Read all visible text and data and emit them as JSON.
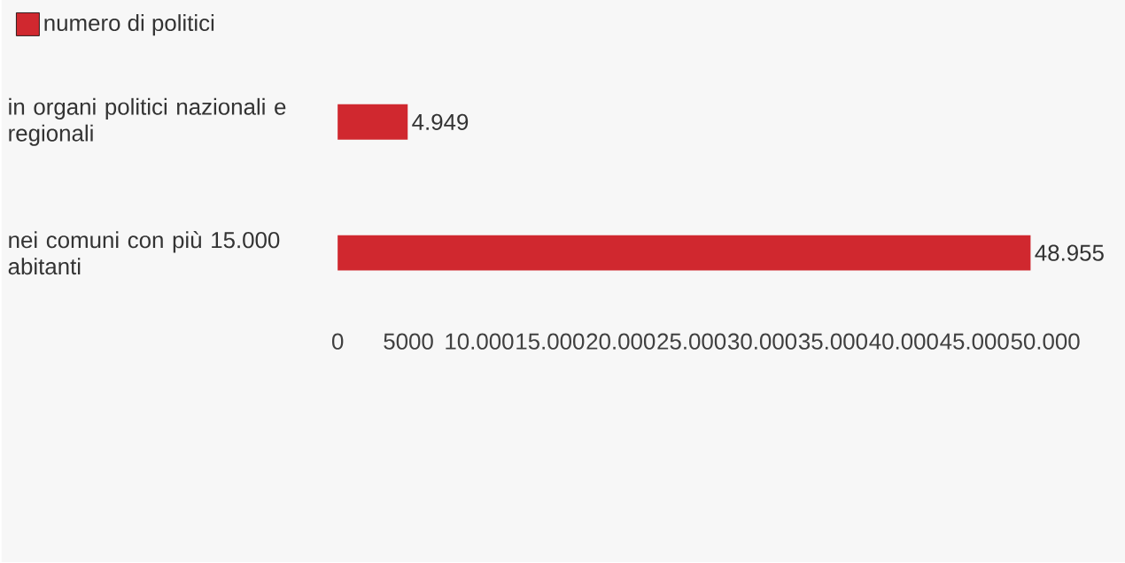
{
  "chart_data": {
    "type": "bar",
    "orientation": "horizontal",
    "categories": [
      "in organi politici nazionali e regionali",
      "nei comuni con più 15.000 abitanti"
    ],
    "series": [
      {
        "name": "numero di politici",
        "color": "#d0282f",
        "values": [
          4949,
          48955
        ],
        "value_labels": [
          "4.949",
          "48.955"
        ]
      }
    ],
    "xlim": [
      0,
      50000
    ],
    "xticks": [
      0,
      5000,
      {
        "value": 10000,
        "label": "10.000"
      },
      {
        "value": 15000,
        "label": "15.000"
      },
      {
        "value": 20000,
        "label": "20.000"
      },
      {
        "value": 25000,
        "label": "25.000"
      },
      {
        "value": 30000,
        "label": "30.000"
      },
      {
        "value": 35000,
        "label": "35.000"
      },
      {
        "value": 40000,
        "label": "40.000"
      },
      {
        "value": 45000,
        "label": "45.000"
      },
      {
        "value": 50000,
        "label": "50.000"
      }
    ],
    "legend": "top left"
  }
}
